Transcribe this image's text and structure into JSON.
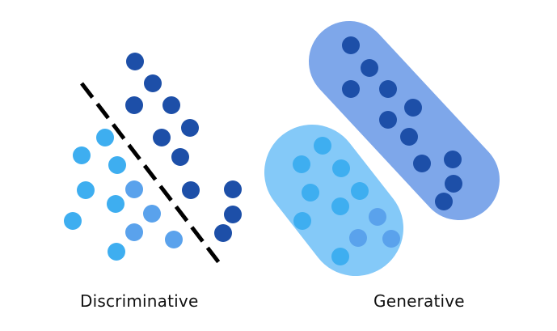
{
  "labels": {
    "discriminative": "Discriminative",
    "generative": "Generative"
  },
  "colors": {
    "dark_point": "#1d4fa8",
    "light_point": "#3eaef0",
    "mid_point": "#5aa2ec",
    "dark_cluster": "#7ea7ea",
    "light_cluster": "#84c9f8",
    "boundary": "#000000"
  }
}
